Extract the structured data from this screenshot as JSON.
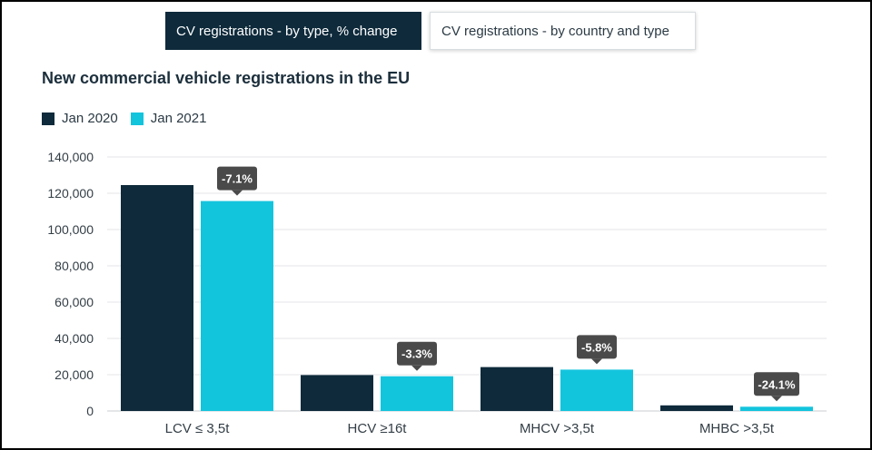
{
  "tabs": {
    "active_label": "CV registrations - by type, % change",
    "inactive_label": "CV registrations - by country and type"
  },
  "colors": {
    "jan2020": "#0e2a3b",
    "jan2021": "#13c4dd",
    "annotation": "#4a4a4a",
    "grid": "#e4e6e8"
  },
  "chart_data": {
    "type": "bar",
    "title": "New commercial vehicle registrations in the EU",
    "categories": [
      "LCV ≤ 3,5t",
      "HCV ≥16t",
      "MHCV >3,5t",
      "MHBC >3,5t"
    ],
    "series": [
      {
        "name": "Jan 2020",
        "values": [
          124500,
          19800,
          24200,
          3100
        ]
      },
      {
        "name": "Jan 2021",
        "values": [
          115700,
          19150,
          22800,
          2350
        ]
      }
    ],
    "annotations": [
      "-7.1%",
      "-3.3%",
      "-5.8%",
      "-24.1%"
    ],
    "yticks": [
      "0",
      "20,000",
      "40,000",
      "60,000",
      "80,000",
      "100,000",
      "120,000",
      "140,000"
    ],
    "ylim": [
      0,
      140000
    ],
    "grid": true,
    "legend_position": "top-left"
  }
}
